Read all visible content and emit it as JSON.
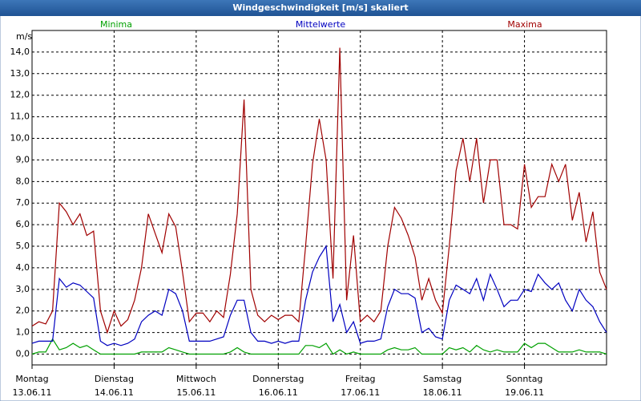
{
  "chart_data": {
    "type": "line",
    "title": "Windgeschwindigkeit [m/s] skaliert",
    "y_label": "m/s",
    "xlim": [
      0,
      168
    ],
    "ylim": [
      -0.5,
      15
    ],
    "yticks": [
      {
        "value": 0,
        "label": "0,0"
      },
      {
        "value": 1,
        "label": "1,0"
      },
      {
        "value": 2,
        "label": "2,0"
      },
      {
        "value": 3,
        "label": "3,0"
      },
      {
        "value": 4,
        "label": "4,0"
      },
      {
        "value": 5,
        "label": "5,0"
      },
      {
        "value": 6,
        "label": "6,0"
      },
      {
        "value": 7,
        "label": "7,0"
      },
      {
        "value": 8,
        "label": "8,0"
      },
      {
        "value": 9,
        "label": "9,0"
      },
      {
        "value": 10,
        "label": "10,0"
      },
      {
        "value": 11,
        "label": "11,0"
      },
      {
        "value": 12,
        "label": "12,0"
      },
      {
        "value": 13,
        "label": "13,0"
      },
      {
        "value": 14,
        "label": "14,0"
      }
    ],
    "xticks": [
      {
        "value": 0,
        "label": "Montag",
        "date": "13.06.11"
      },
      {
        "value": 24,
        "label": "Dienstag",
        "date": "14.06.11"
      },
      {
        "value": 48,
        "label": "Mittwoch",
        "date": "15.06.11"
      },
      {
        "value": 72,
        "label": "Donnerstag",
        "date": "16.06.11"
      },
      {
        "value": 96,
        "label": "Freitag",
        "date": "17.06.11"
      },
      {
        "value": 120,
        "label": "Samstag",
        "date": "18.06.11"
      },
      {
        "value": 144,
        "label": "Sonntag",
        "date": "19.06.11"
      }
    ],
    "grid": true,
    "x": [
      0,
      2,
      4,
      6,
      8,
      10,
      12,
      14,
      16,
      18,
      20,
      22,
      24,
      26,
      28,
      30,
      32,
      34,
      36,
      38,
      40,
      42,
      44,
      46,
      48,
      50,
      52,
      54,
      56,
      58,
      60,
      62,
      64,
      66,
      68,
      70,
      72,
      74,
      76,
      78,
      80,
      82,
      84,
      86,
      88,
      90,
      92,
      94,
      96,
      98,
      100,
      102,
      104,
      106,
      108,
      110,
      112,
      114,
      116,
      118,
      120,
      122,
      124,
      126,
      128,
      130,
      132,
      134,
      136,
      138,
      140,
      142,
      144,
      146,
      148,
      150,
      152,
      154,
      156,
      158,
      160,
      162,
      164,
      166,
      168
    ],
    "series": [
      {
        "name": "Minima",
        "color": "#00a000",
        "values": [
          0,
          0.1,
          0.1,
          0.7,
          0.2,
          0.3,
          0.5,
          0.3,
          0.4,
          0.2,
          0,
          0,
          0,
          0,
          0,
          0,
          0.1,
          0.1,
          0.1,
          0.1,
          0.3,
          0.2,
          0.1,
          0,
          0,
          0,
          0,
          0,
          0,
          0.1,
          0.3,
          0.1,
          0,
          0,
          0,
          0,
          0,
          0,
          0,
          0,
          0.4,
          0.4,
          0.3,
          0.5,
          0,
          0.2,
          0,
          0.1,
          0,
          0,
          0,
          0,
          0.2,
          0.3,
          0.2,
          0.2,
          0.3,
          0,
          0,
          0,
          0,
          0.3,
          0.2,
          0.3,
          0.1,
          0.4,
          0.2,
          0.1,
          0.2,
          0.1,
          0.1,
          0.1,
          0.5,
          0.3,
          0.5,
          0.5,
          0.3,
          0.1,
          0.1,
          0.1,
          0.2,
          0.1,
          0.1,
          0.1,
          0
        ]
      },
      {
        "name": "Mittelwerte",
        "color": "#0000c0",
        "values": [
          0.5,
          0.6,
          0.6,
          0.6,
          3.5,
          3.1,
          3.3,
          3.2,
          2.9,
          2.6,
          0.6,
          0.4,
          0.5,
          0.4,
          0.5,
          0.7,
          1.5,
          1.8,
          2.0,
          1.8,
          3.0,
          2.8,
          2.0,
          0.6,
          0.6,
          0.6,
          0.6,
          0.7,
          0.8,
          1.8,
          2.5,
          2.5,
          1.0,
          0.6,
          0.6,
          0.5,
          0.6,
          0.5,
          0.6,
          0.6,
          2.5,
          3.8,
          4.5,
          5.0,
          1.5,
          2.3,
          1.0,
          1.5,
          0.5,
          0.6,
          0.6,
          0.7,
          2.2,
          3.0,
          2.8,
          2.8,
          2.6,
          1.0,
          1.2,
          0.8,
          0.7,
          2.5,
          3.2,
          3.0,
          2.8,
          3.5,
          2.5,
          3.7,
          3.0,
          2.2,
          2.5,
          2.5,
          3.0,
          2.9,
          3.7,
          3.3,
          3.0,
          3.3,
          2.5,
          2.0,
          3.0,
          2.5,
          2.2,
          1.5,
          1.0
        ]
      },
      {
        "name": "Maxima",
        "color": "#a00000",
        "values": [
          1.3,
          1.5,
          1.4,
          2.0,
          7.0,
          6.6,
          6.0,
          6.5,
          5.5,
          5.7,
          2.0,
          1.0,
          2.0,
          1.3,
          1.6,
          2.5,
          4.0,
          6.5,
          5.6,
          4.7,
          6.5,
          5.9,
          3.8,
          1.5,
          1.9,
          1.9,
          1.5,
          2.0,
          1.7,
          3.7,
          6.5,
          11.8,
          3.0,
          1.8,
          1.5,
          1.8,
          1.6,
          1.8,
          1.8,
          1.5,
          5.0,
          8.8,
          10.9,
          9.0,
          3.5,
          14.2,
          2.5,
          5.5,
          1.5,
          1.8,
          1.5,
          2.0,
          5.0,
          6.8,
          6.3,
          5.5,
          4.5,
          2.5,
          3.5,
          2.5,
          1.9,
          5.0,
          8.5,
          10.0,
          8.0,
          10.0,
          7.0,
          9.0,
          9.0,
          6.0,
          6.0,
          5.8,
          8.8,
          6.8,
          7.3,
          7.3,
          8.8,
          8.0,
          8.8,
          6.2,
          7.5,
          5.2,
          6.6,
          3.8,
          3.0
        ]
      }
    ]
  }
}
